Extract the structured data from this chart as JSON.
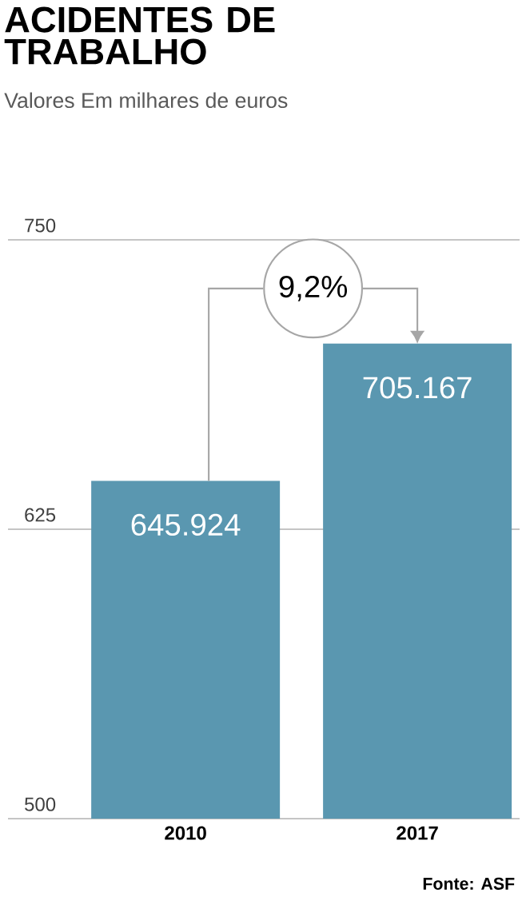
{
  "chart_data": {
    "type": "bar",
    "title": "ACIDENTES DE TRABALHO",
    "subtitle": "Valores  Em milhares de euros",
    "categories": [
      "2010",
      "2017"
    ],
    "values": [
      645.924,
      705.167
    ],
    "value_labels": [
      "645.924",
      "705.167"
    ],
    "color": "#5a97b0",
    "ylim": [
      500,
      750
    ],
    "yticks": [
      500,
      625,
      750
    ],
    "grid": "y",
    "annotations": [
      {
        "text": "9,2%",
        "x": "2017",
        "y": 705.167
      },
      "Fonte: ASF"
    ]
  }
}
